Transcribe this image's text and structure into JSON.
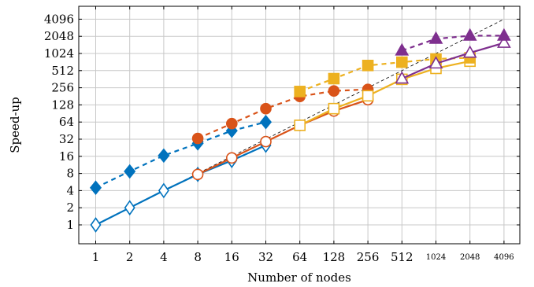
{
  "chart_data": {
    "type": "line",
    "title": "",
    "xlabel": "Number of nodes",
    "ylabel": "Speed-up",
    "xscale": "log2",
    "yscale": "log2",
    "xlim": [
      1,
      4096
    ],
    "ylim": [
      0.5,
      8192
    ],
    "x_ticks": [
      1,
      2,
      4,
      8,
      16,
      32,
      64,
      128,
      256,
      512,
      1024,
      2048,
      4096
    ],
    "x_tick_labels": [
      "1",
      "2",
      "4",
      "8",
      "16",
      "32",
      "64",
      "128",
      "256",
      "512",
      "1024",
      "2048",
      "4096"
    ],
    "y_ticks": [
      1,
      2,
      4,
      8,
      16,
      32,
      64,
      128,
      256,
      512,
      1024,
      2048,
      4096
    ],
    "y_tick_labels": [
      "1",
      "2",
      "4",
      "8",
      "16",
      "32",
      "64",
      "128",
      "256",
      "512",
      "1024",
      "2048",
      "4096"
    ],
    "grid": true,
    "legend": "none",
    "reference_line": {
      "style": "dashed",
      "color": "#000000",
      "x": [
        1,
        4096
      ],
      "y": [
        1,
        4096
      ]
    },
    "series": [
      {
        "color": "#0072bd",
        "marker": "diamond",
        "filled": false,
        "dashed": false,
        "x": [
          1,
          2,
          4,
          8,
          16,
          32
        ],
        "y": [
          1,
          2,
          4,
          7.7,
          13.5,
          25
        ]
      },
      {
        "color": "#0072bd",
        "marker": "diamond",
        "filled": true,
        "dashed": true,
        "x": [
          1,
          2,
          4,
          8,
          16,
          32
        ],
        "y": [
          4.5,
          8.7,
          16.5,
          27,
          45,
          64
        ]
      },
      {
        "color": "#d95319",
        "marker": "circle",
        "filled": false,
        "dashed": false,
        "x": [
          8,
          16,
          32,
          64,
          128,
          256
        ],
        "y": [
          7.7,
          15,
          29,
          56,
          100,
          158
        ]
      },
      {
        "color": "#d95319",
        "marker": "circle",
        "filled": true,
        "dashed": true,
        "x": [
          8,
          16,
          32,
          64,
          128,
          256
        ],
        "y": [
          33,
          60,
          110,
          180,
          225,
          240
        ]
      },
      {
        "color": "#edb120",
        "marker": "square",
        "filled": false,
        "dashed": false,
        "x": [
          64,
          128,
          256,
          512,
          1024,
          2048
        ],
        "y": [
          56,
          110,
          185,
          360,
          560,
          750
        ]
      },
      {
        "color": "#edb120",
        "marker": "square",
        "filled": true,
        "dashed": true,
        "x": [
          64,
          128,
          256,
          512,
          1024,
          2048
        ],
        "y": [
          220,
          370,
          630,
          720,
          820,
          860
        ]
      },
      {
        "color": "#7e2f8e",
        "marker": "triangle",
        "filled": false,
        "dashed": false,
        "x": [
          512,
          1024,
          2048,
          4096
        ],
        "y": [
          370,
          680,
          1050,
          1570
        ]
      },
      {
        "color": "#7e2f8e",
        "marker": "triangle",
        "filled": true,
        "dashed": true,
        "x": [
          512,
          1024,
          2048,
          4096
        ],
        "y": [
          1150,
          1850,
          2100,
          2100
        ]
      }
    ]
  }
}
